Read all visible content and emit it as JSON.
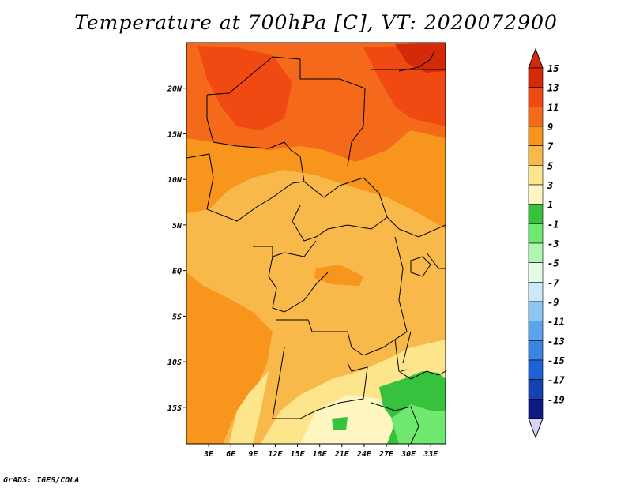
{
  "title": "Temperature at 700hPa [C], VT: 2020072900",
  "footer": "GrADS: IGES/COLA",
  "map": {
    "lon_range": [
      0,
      35
    ],
    "lat_range": [
      -19,
      25
    ],
    "lon_ticks": [
      "3E",
      "6E",
      "9E",
      "12E",
      "15E",
      "18E",
      "21E",
      "24E",
      "27E",
      "30E",
      "33E"
    ],
    "lat_ticks": [
      "20N",
      "15N",
      "10N",
      "5N",
      "EQ",
      "5S",
      "10S",
      "15S"
    ]
  },
  "colorbar": {
    "levels": [
      "15",
      "13",
      "11",
      "9",
      "7",
      "5",
      "3",
      "1",
      "-1",
      "-3",
      "-5",
      "-7",
      "-9",
      "-11",
      "-13",
      "-15",
      "-17",
      "-19"
    ],
    "colors": [
      "#d42a0a",
      "#f04a12",
      "#f56a1a",
      "#f7951c",
      "#f9b84a",
      "#fde58c",
      "#fdf6c0",
      "#36c23c",
      "#6ee86e",
      "#b0f5b0",
      "#e4fbe4",
      "#cce8fa",
      "#8cc4f4",
      "#5aa4ee",
      "#3a84e4",
      "#1e62d8",
      "#1442b4",
      "#0a1a80"
    ],
    "top_color": "#d42a0a",
    "bottom_color": "#d9d4f5"
  }
}
